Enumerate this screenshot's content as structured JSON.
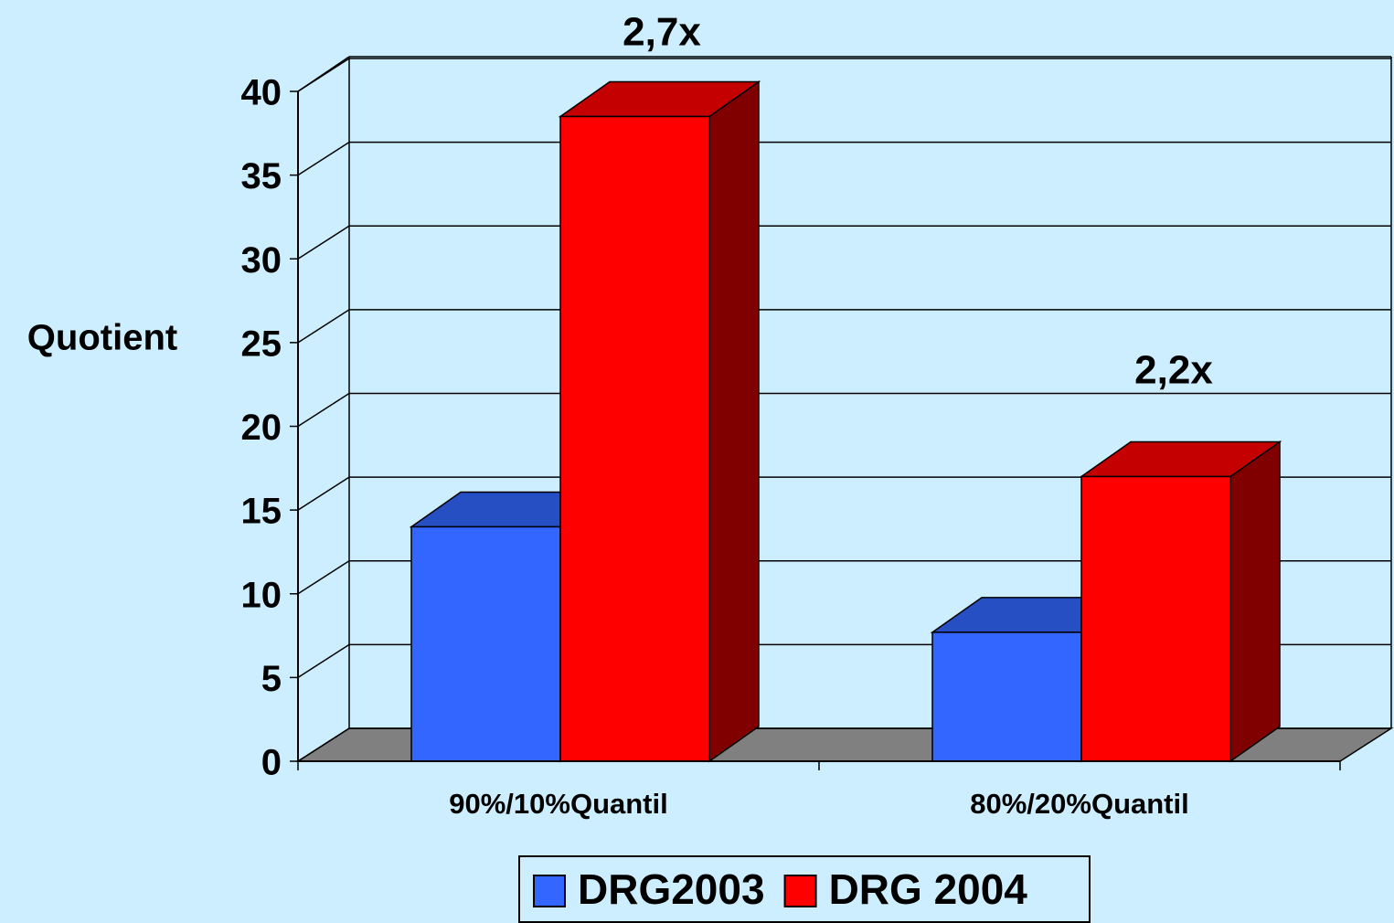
{
  "chart_data": {
    "type": "bar3d",
    "y_label": "Quotient",
    "categories": [
      "90%/10%Quantil",
      "80%/20%Quantil"
    ],
    "series": [
      {
        "name": "DRG2003",
        "color": "#3366ff",
        "values": [
          14,
          7.7
        ]
      },
      {
        "name": "DRG 2004",
        "color": "#ff0000",
        "values": [
          38.5,
          17
        ]
      }
    ],
    "annotations": [
      "2,7x",
      "2,2x"
    ],
    "ylim": [
      0,
      40
    ],
    "yticks": [
      0,
      5,
      10,
      15,
      20,
      25,
      30,
      35,
      40
    ],
    "grid": true,
    "legend": "bottom"
  }
}
